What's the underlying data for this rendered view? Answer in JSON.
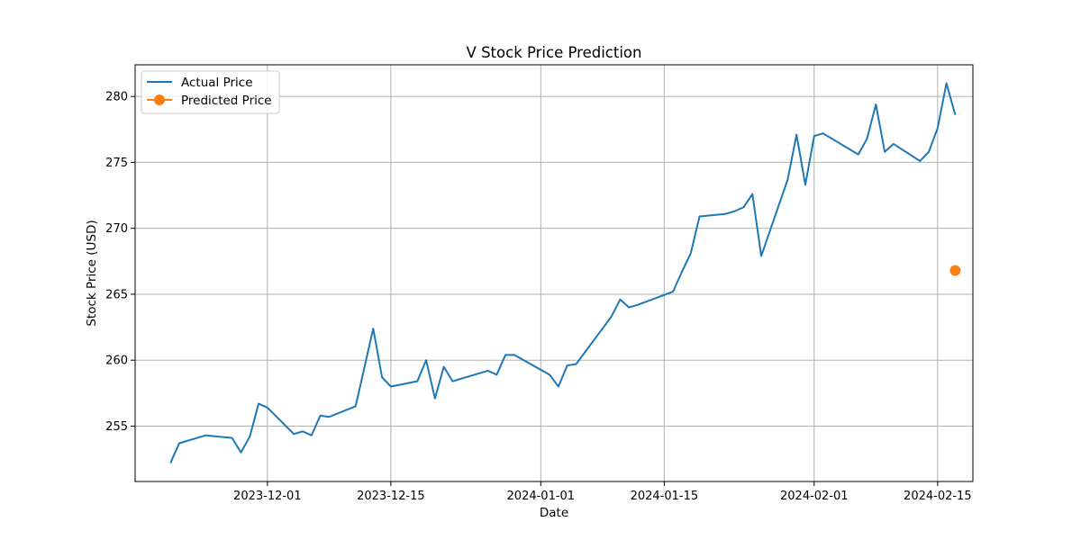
{
  "chart_data": {
    "type": "line",
    "title": "V Stock Price Prediction",
    "xlabel": "Date",
    "ylabel": "Stock Price (USD)",
    "xlim": [
      "2023-11-16",
      "2024-02-19"
    ],
    "ylim": [
      250.8,
      282.4
    ],
    "grid": true,
    "legend_position": "top-left",
    "x_ticks": [
      "2023-12-01",
      "2023-12-15",
      "2024-01-01",
      "2024-01-15",
      "2024-02-01",
      "2024-02-15"
    ],
    "y_ticks": [
      255,
      260,
      265,
      270,
      275,
      280
    ],
    "series": [
      {
        "name": "Actual Price",
        "color": "#1f77b4",
        "marker": "none",
        "points": [
          [
            "2023-11-20",
            252.2
          ],
          [
            "2023-11-21",
            253.7
          ],
          [
            "2023-11-24",
            254.3
          ],
          [
            "2023-11-27",
            254.1
          ],
          [
            "2023-11-28",
            253.0
          ],
          [
            "2023-11-29",
            254.2
          ],
          [
            "2023-11-30",
            256.7
          ],
          [
            "2023-12-01",
            256.4
          ],
          [
            "2023-12-04",
            254.4
          ],
          [
            "2023-12-05",
            254.6
          ],
          [
            "2023-12-06",
            254.3
          ],
          [
            "2023-12-07",
            255.8
          ],
          [
            "2023-12-08",
            255.7
          ],
          [
            "2023-12-11",
            256.5
          ],
          [
            "2023-12-13",
            262.4
          ],
          [
            "2023-12-14",
            258.7
          ],
          [
            "2023-12-15",
            258.0
          ],
          [
            "2023-12-18",
            258.4
          ],
          [
            "2023-12-19",
            260.0
          ],
          [
            "2023-12-20",
            257.1
          ],
          [
            "2023-12-21",
            259.5
          ],
          [
            "2023-12-22",
            258.4
          ],
          [
            "2023-12-26",
            259.2
          ],
          [
            "2023-12-27",
            258.9
          ],
          [
            "2023-12-28",
            260.4
          ],
          [
            "2023-12-29",
            260.4
          ],
          [
            "2024-01-02",
            258.9
          ],
          [
            "2024-01-03",
            258.0
          ],
          [
            "2024-01-04",
            259.6
          ],
          [
            "2024-01-05",
            259.7
          ],
          [
            "2024-01-08",
            262.4
          ],
          [
            "2024-01-09",
            263.3
          ],
          [
            "2024-01-10",
            264.6
          ],
          [
            "2024-01-11",
            264.0
          ],
          [
            "2024-01-12",
            264.2
          ],
          [
            "2024-01-16",
            265.2
          ],
          [
            "2024-01-17",
            266.7
          ],
          [
            "2024-01-18",
            268.1
          ],
          [
            "2024-01-19",
            270.9
          ],
          [
            "2024-01-22",
            271.1
          ],
          [
            "2024-01-23",
            271.3
          ],
          [
            "2024-01-24",
            271.6
          ],
          [
            "2024-01-25",
            272.6
          ],
          [
            "2024-01-26",
            267.9
          ],
          [
            "2024-01-29",
            273.7
          ],
          [
            "2024-01-30",
            277.1
          ],
          [
            "2024-01-31",
            273.3
          ],
          [
            "2024-02-01",
            277.0
          ],
          [
            "2024-02-02",
            277.2
          ],
          [
            "2024-02-06",
            275.6
          ],
          [
            "2024-02-07",
            276.8
          ],
          [
            "2024-02-08",
            279.4
          ],
          [
            "2024-02-09",
            275.8
          ],
          [
            "2024-02-10",
            276.4
          ],
          [
            "2024-02-13",
            275.1
          ],
          [
            "2024-02-14",
            275.8
          ],
          [
            "2024-02-15",
            277.6
          ],
          [
            "2024-02-16",
            281.0
          ],
          [
            "2024-02-17",
            278.6
          ]
        ]
      },
      {
        "name": "Predicted Price",
        "color": "#ff7f0e",
        "marker": "circle",
        "points": [
          [
            "2024-02-17",
            266.8
          ]
        ]
      }
    ]
  }
}
